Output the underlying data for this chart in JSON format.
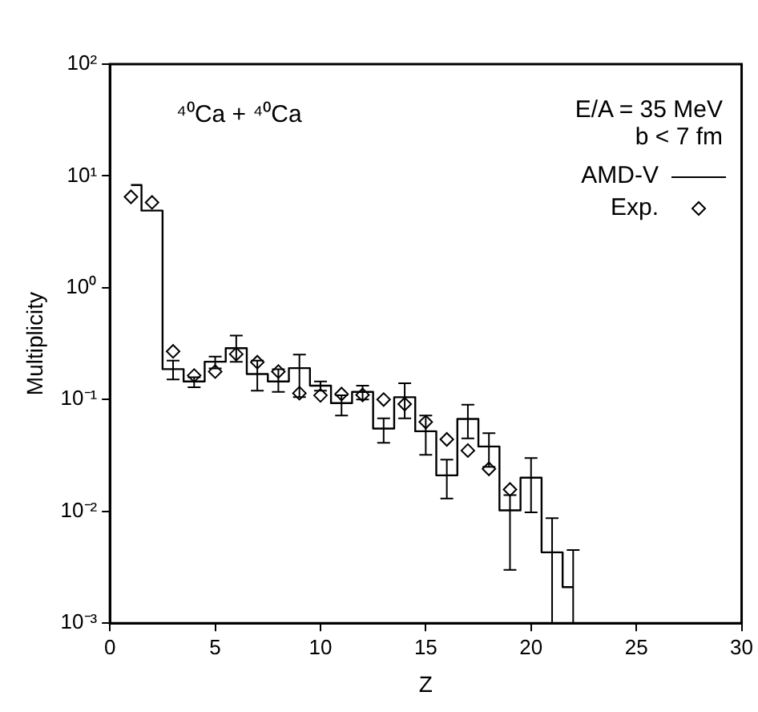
{
  "chart_data": {
    "type": "step",
    "xlabel": "Z",
    "ylabel": "Multiplicity",
    "annotations": [
      "⁴⁰Ca + ⁴⁰Ca",
      "E/A = 35 MeV",
      "b < 7 fm"
    ],
    "xlim": [
      0,
      30
    ],
    "xticks": [
      0,
      5,
      10,
      15,
      20,
      25,
      30
    ],
    "ylim": [
      0.001,
      100
    ],
    "log": true,
    "yticks": [
      {
        "value": 0.001,
        "label": "10⁻³"
      },
      {
        "value": 0.01,
        "label": "10⁻²"
      },
      {
        "value": 0.1,
        "label": "10⁻¹"
      },
      {
        "value": 1,
        "label": "10⁰"
      },
      {
        "value": 10,
        "label": "10¹"
      },
      {
        "value": 100,
        "label": "10²"
      }
    ],
    "grid": false,
    "legend": "top right",
    "series": [
      {
        "name": "AMD-V",
        "color": "#000000",
        "line_style": "solid",
        "marker": "none",
        "x": [
          1,
          2,
          3,
          4,
          5,
          6,
          7,
          8,
          9,
          10,
          11,
          12,
          13,
          14,
          15,
          16,
          17,
          18,
          19,
          20,
          21,
          22
        ],
        "values": [
          8.3,
          4.9,
          0.187,
          0.145,
          0.218,
          0.288,
          0.169,
          0.145,
          0.191,
          0.133,
          0.093,
          0.117,
          0.055,
          0.105,
          0.052,
          0.021,
          0.067,
          0.038,
          0.0102,
          0.02,
          0.0043,
          0.0021
        ],
        "errors": [
          null,
          null,
          [
            0.151,
            0.223
          ],
          [
            0.129,
            0.158
          ],
          [
            0.19,
            0.242
          ],
          [
            0.218,
            0.373
          ],
          [
            0.12,
            0.223
          ],
          [
            0.117,
            0.187
          ],
          [
            0.105,
            0.252
          ],
          [
            0.12,
            0.145
          ],
          [
            0.072,
            0.109
          ],
          [
            0.1,
            0.133
          ],
          [
            0.041,
            0.068
          ],
          [
            0.068,
            0.14
          ],
          [
            0.032,
            0.072
          ],
          [
            0.013,
            0.029
          ],
          [
            0.045,
            0.09
          ],
          [
            0.025,
            0.05
          ],
          [
            0.003,
            0.014
          ],
          [
            0.0098,
            0.03
          ],
          [
            0.001,
            0.0087
          ],
          [
            0.001,
            0.0045
          ]
        ]
      },
      {
        "name": "Exp.",
        "type": "scatter",
        "color": "#000000",
        "marker": "diamond",
        "x": [
          1,
          2,
          3,
          4,
          5,
          6,
          7,
          8,
          9,
          10,
          11,
          12,
          13,
          14,
          15,
          16,
          17,
          18,
          19
        ],
        "values": [
          6.5,
          5.8,
          0.27,
          0.164,
          0.178,
          0.255,
          0.216,
          0.178,
          0.114,
          0.109,
          0.112,
          0.11,
          0.1,
          0.091,
          0.063,
          0.044,
          0.035,
          0.024,
          0.0157
        ]
      }
    ]
  }
}
